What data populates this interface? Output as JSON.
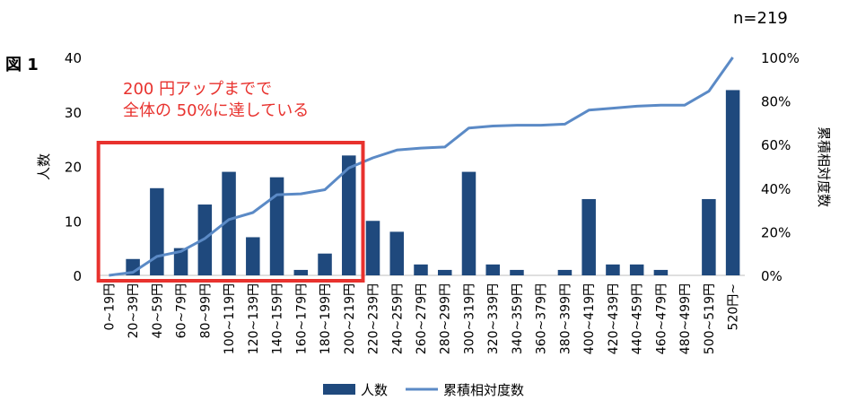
{
  "figure_label": "図 1",
  "n_label": "n=219",
  "annotation": {
    "line1": "200 円アップまでで",
    "line2": "全体の 50%に達している"
  },
  "colors": {
    "bar": "#1f497d",
    "line": "#5b8ac6",
    "highlight": "#e8322e"
  },
  "chart_data": {
    "type": "bar",
    "categories": [
      "0~19円",
      "20~39円",
      "40~59円",
      "60~79円",
      "80~99円",
      "100~119円",
      "120~139円",
      "140~159円",
      "160~179円",
      "180~199円",
      "200~219円",
      "220~239円",
      "240~259円",
      "260~279円",
      "280~299円",
      "300~319円",
      "320~339円",
      "340~359円",
      "360~379円",
      "380~399円",
      "400~419円",
      "420~439円",
      "440~459円",
      "460~479円",
      "480~499円",
      "500~519円",
      "520円~"
    ],
    "series": [
      {
        "name": "人数",
        "type": "bar",
        "axis": "left",
        "values": [
          0,
          3,
          16,
          5,
          13,
          19,
          7,
          18,
          1,
          4,
          22,
          10,
          8,
          2,
          1,
          19,
          2,
          1,
          0,
          1,
          14,
          2,
          2,
          1,
          0,
          14,
          34
        ]
      },
      {
        "name": "累積相対度数",
        "type": "line",
        "axis": "right",
        "values": [
          0.0,
          1.4,
          8.7,
          11.0,
          16.9,
          25.6,
          28.8,
          37.0,
          37.4,
          39.3,
          49.3,
          53.9,
          57.5,
          58.4,
          58.9,
          67.6,
          68.5,
          68.9,
          68.9,
          69.4,
          75.8,
          76.7,
          77.6,
          78.1,
          78.1,
          84.5,
          100.0
        ]
      }
    ],
    "ylabel": "人数",
    "ylim": [
      0,
      40
    ],
    "yticks": [
      "0",
      "10",
      "20",
      "30",
      "40"
    ],
    "y2label": "累積相対度数",
    "y2lim": [
      0,
      100
    ],
    "y2ticks": [
      "0%",
      "20%",
      "40%",
      "60%",
      "80%",
      "100%"
    ],
    "highlight_range": [
      "0~19円",
      "200~219円"
    ],
    "legend": {
      "position": "bottom",
      "items": [
        "人数",
        "累積相対度数"
      ]
    },
    "grid": false
  }
}
